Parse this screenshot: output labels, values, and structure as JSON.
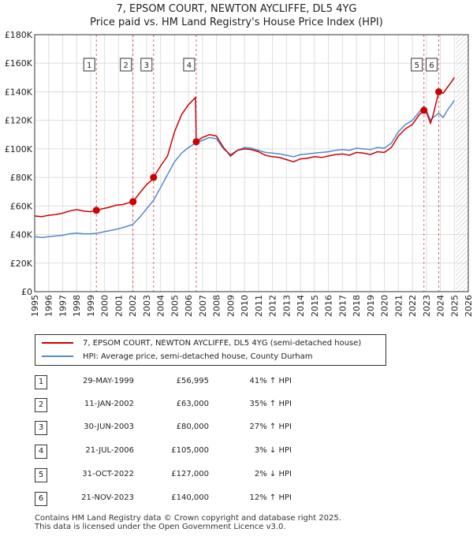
{
  "title_line1": "7, EPSOM COURT, NEWTON AYCLIFFE, DL5 4YG",
  "title_line2": "Price paid vs. HM Land Registry's House Price Index (HPI)",
  "chart_data": {
    "type": "line",
    "x_ticks": [
      "1995",
      "1996",
      "1997",
      "1998",
      "1999",
      "2000",
      "2001",
      "2002",
      "2003",
      "2004",
      "2005",
      "2006",
      "2007",
      "2008",
      "2009",
      "2010",
      "2011",
      "2012",
      "2013",
      "2014",
      "2015",
      "2016",
      "2017",
      "2018",
      "2019",
      "2020",
      "2021",
      "2022",
      "2023",
      "2024",
      "2025",
      "2026"
    ],
    "y_ticks": [
      "£0",
      "£20K",
      "£40K",
      "£60K",
      "£80K",
      "£100K",
      "£120K",
      "£140K",
      "£160K",
      "£180K"
    ],
    "xlim": [
      1995,
      2026
    ],
    "ylim": [
      0,
      180000
    ],
    "forecast_start": 2025.1,
    "series": [
      {
        "name": "7, EPSOM COURT, NEWTON AYCLIFFE, DL5 4YG (semi-detached house)",
        "color": "#cc0000",
        "points": [
          [
            1995.0,
            53000
          ],
          [
            1995.5,
            52500
          ],
          [
            1996.0,
            53500
          ],
          [
            1996.5,
            54000
          ],
          [
            1997.0,
            55000
          ],
          [
            1997.5,
            56500
          ],
          [
            1998.0,
            57500
          ],
          [
            1998.5,
            56500
          ],
          [
            1999.0,
            56000
          ],
          [
            1999.41,
            56995
          ],
          [
            1999.8,
            58000
          ],
          [
            2000.3,
            59000
          ],
          [
            2000.8,
            60500
          ],
          [
            2001.3,
            61000
          ],
          [
            2001.8,
            62500
          ],
          [
            2002.03,
            63000
          ],
          [
            2002.5,
            69000
          ],
          [
            2003.0,
            75000
          ],
          [
            2003.3,
            77500
          ],
          [
            2003.5,
            80000
          ],
          [
            2004.0,
            88000
          ],
          [
            2004.5,
            95000
          ],
          [
            2005.0,
            112000
          ],
          [
            2005.5,
            124000
          ],
          [
            2006.0,
            131000
          ],
          [
            2006.3,
            134000
          ],
          [
            2006.5,
            136000
          ],
          [
            2006.55,
            105000
          ],
          [
            2007.0,
            108000
          ],
          [
            2007.5,
            110000
          ],
          [
            2008.0,
            109000
          ],
          [
            2008.5,
            101000
          ],
          [
            2009.0,
            95000
          ],
          [
            2009.5,
            99000
          ],
          [
            2010.0,
            100000
          ],
          [
            2010.5,
            99500
          ],
          [
            2011.0,
            98000
          ],
          [
            2011.5,
            95500
          ],
          [
            2012.0,
            94500
          ],
          [
            2012.5,
            94000
          ],
          [
            2013.0,
            92500
          ],
          [
            2013.5,
            91000
          ],
          [
            2014.0,
            93000
          ],
          [
            2014.5,
            93500
          ],
          [
            2015.0,
            94500
          ],
          [
            2015.5,
            94000
          ],
          [
            2016.0,
            95000
          ],
          [
            2016.5,
            96000
          ],
          [
            2017.0,
            96500
          ],
          [
            2017.5,
            95500
          ],
          [
            2018.0,
            97500
          ],
          [
            2018.5,
            97000
          ],
          [
            2019.0,
            96000
          ],
          [
            2019.5,
            98000
          ],
          [
            2020.0,
            97500
          ],
          [
            2020.5,
            101000
          ],
          [
            2021.0,
            109000
          ],
          [
            2021.5,
            114000
          ],
          [
            2022.0,
            117000
          ],
          [
            2022.5,
            124000
          ],
          [
            2022.83,
            127000
          ],
          [
            2023.0,
            126000
          ],
          [
            2023.3,
            118000
          ],
          [
            2023.5,
            124000
          ],
          [
            2023.89,
            140000
          ],
          [
            2024.2,
            139000
          ],
          [
            2024.5,
            143000
          ],
          [
            2024.8,
            147000
          ],
          [
            2025.0,
            150000
          ]
        ]
      },
      {
        "name": "HPI: Average price, semi-detached house, County Durham",
        "color": "#5588cc",
        "points": [
          [
            1995.0,
            38500
          ],
          [
            1995.5,
            38000
          ],
          [
            1996.0,
            38500
          ],
          [
            1996.5,
            39000
          ],
          [
            1997.0,
            39500
          ],
          [
            1997.5,
            40500
          ],
          [
            1998.0,
            41000
          ],
          [
            1998.5,
            40500
          ],
          [
            1999.0,
            40500
          ],
          [
            1999.5,
            41000
          ],
          [
            2000.0,
            42000
          ],
          [
            2000.5,
            43000
          ],
          [
            2001.0,
            44000
          ],
          [
            2001.5,
            45500
          ],
          [
            2002.0,
            47000
          ],
          [
            2002.5,
            52000
          ],
          [
            2003.0,
            58000
          ],
          [
            2003.5,
            64000
          ],
          [
            2004.0,
            73000
          ],
          [
            2004.5,
            82000
          ],
          [
            2005.0,
            91000
          ],
          [
            2005.5,
            97000
          ],
          [
            2006.0,
            101000
          ],
          [
            2006.5,
            104000
          ],
          [
            2007.0,
            106000
          ],
          [
            2007.5,
            108000
          ],
          [
            2008.0,
            107000
          ],
          [
            2008.5,
            100000
          ],
          [
            2009.0,
            96000
          ],
          [
            2009.5,
            99000
          ],
          [
            2010.0,
            101000
          ],
          [
            2010.5,
            100500
          ],
          [
            2011.0,
            99000
          ],
          [
            2011.5,
            97500
          ],
          [
            2012.0,
            97000
          ],
          [
            2012.5,
            96500
          ],
          [
            2013.0,
            95500
          ],
          [
            2013.5,
            94500
          ],
          [
            2014.0,
            96000
          ],
          [
            2014.5,
            96500
          ],
          [
            2015.0,
            97000
          ],
          [
            2015.5,
            97500
          ],
          [
            2016.0,
            98000
          ],
          [
            2016.5,
            99000
          ],
          [
            2017.0,
            99500
          ],
          [
            2017.5,
            99000
          ],
          [
            2018.0,
            100500
          ],
          [
            2018.5,
            100000
          ],
          [
            2019.0,
            99500
          ],
          [
            2019.5,
            101000
          ],
          [
            2020.0,
            100500
          ],
          [
            2020.5,
            104000
          ],
          [
            2021.0,
            112000
          ],
          [
            2021.5,
            117000
          ],
          [
            2022.0,
            120000
          ],
          [
            2022.5,
            126000
          ],
          [
            2022.83,
            130000
          ],
          [
            2023.0,
            127000
          ],
          [
            2023.3,
            120000
          ],
          [
            2023.5,
            122000
          ],
          [
            2023.89,
            125000
          ],
          [
            2024.2,
            122000
          ],
          [
            2024.5,
            127000
          ],
          [
            2024.8,
            131000
          ],
          [
            2025.0,
            134000
          ]
        ]
      }
    ],
    "sales": [
      {
        "label": "1",
        "x": 1999.41,
        "y": 56995
      },
      {
        "label": "2",
        "x": 2002.03,
        "y": 63000
      },
      {
        "label": "3",
        "x": 2003.5,
        "y": 80000
      },
      {
        "label": "4",
        "x": 2006.55,
        "y": 105000
      },
      {
        "label": "5",
        "x": 2022.83,
        "y": 127000
      },
      {
        "label": "6",
        "x": 2023.89,
        "y": 140000
      }
    ]
  },
  "legend": {
    "series1": "7, EPSOM COURT, NEWTON AYCLIFFE, DL5 4YG (semi-detached house)",
    "series2": "HPI: Average price, semi-detached house, County Durham"
  },
  "sales_table": [
    {
      "num": "1",
      "date": "29-MAY-1999",
      "price": "£56,995",
      "hpi": "41% ↑ HPI"
    },
    {
      "num": "2",
      "date": "11-JAN-2002",
      "price": "£63,000",
      "hpi": "35% ↑ HPI"
    },
    {
      "num": "3",
      "date": "30-JUN-2003",
      "price": "£80,000",
      "hpi": "27% ↑ HPI"
    },
    {
      "num": "4",
      "date": "21-JUL-2006",
      "price": "£105,000",
      "hpi": "3% ↓ HPI"
    },
    {
      "num": "5",
      "date": "31-OCT-2022",
      "price": "£127,000",
      "hpi": "2% ↓ HPI"
    },
    {
      "num": "6",
      "date": "21-NOV-2023",
      "price": "£140,000",
      "hpi": "12% ↑ HPI"
    }
  ],
  "footer": {
    "line1": "Contains HM Land Registry data © Crown copyright and database right 2025.",
    "line2": "This data is licensed under the Open Government Licence v3.0."
  }
}
